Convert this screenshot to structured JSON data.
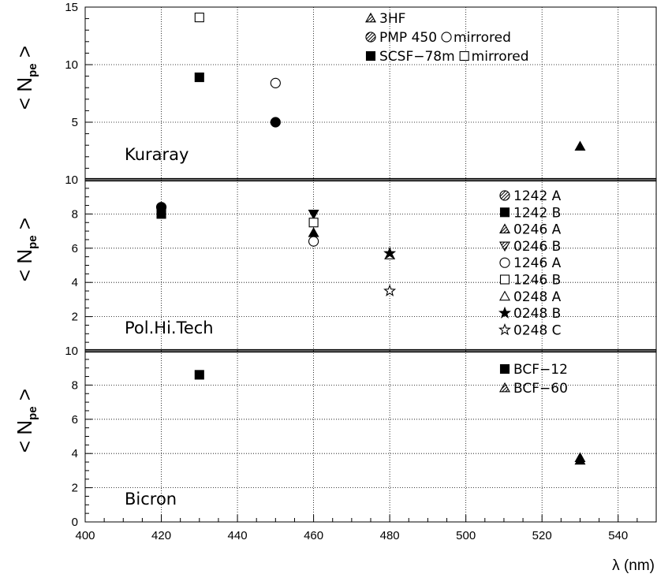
{
  "chart_data": [
    {
      "type": "scatter",
      "panel": "Kuraray",
      "ylabel": "<Npe>",
      "ylim": [
        0,
        15
      ],
      "yticks": [
        5,
        10,
        15
      ],
      "xlim": [
        400,
        550
      ],
      "grid": true,
      "legend_position": "top-center",
      "series": [
        {
          "name": "3HF",
          "marker": "triangle-filled",
          "points": [
            {
              "x": 530,
              "y": 2.9
            }
          ]
        },
        {
          "name": "PMP 450",
          "marker": "circle-filled",
          "points": [
            {
              "x": 450,
              "y": 5.0
            }
          ]
        },
        {
          "name": "PMP 450 mirrored",
          "marker": "circle-open",
          "points": [
            {
              "x": 450,
              "y": 8.4
            }
          ]
        },
        {
          "name": "SCSF-78m",
          "marker": "square-filled",
          "points": [
            {
              "x": 430,
              "y": 8.9
            }
          ]
        },
        {
          "name": "SCSF-78m mirrored",
          "marker": "square-open",
          "points": [
            {
              "x": 430,
              "y": 14.1
            }
          ]
        }
      ],
      "legend": [
        {
          "markers": [
            "triangle-hatched"
          ],
          "text": "3HF"
        },
        {
          "markers": [
            "circle-hatched"
          ],
          "text": "PMP 450",
          "text2": "mirrored",
          "marker2": "circle-open"
        },
        {
          "markers": [
            "square-filled"
          ],
          "text": "SCSF−78m",
          "text2": "mirrored",
          "marker2": "square-open"
        }
      ]
    },
    {
      "type": "scatter",
      "panel": "Pol.Hi.Tech",
      "ylabel": "<Npe>",
      "ylim": [
        0,
        10
      ],
      "yticks": [
        2,
        4,
        6,
        8,
        10
      ],
      "xlim": [
        400,
        550
      ],
      "grid": true,
      "legend_position": "right",
      "series": [
        {
          "name": "1242 A",
          "marker": "circle-filled",
          "points": [
            {
              "x": 420,
              "y": 8.4
            }
          ]
        },
        {
          "name": "1242 B",
          "marker": "square-filled",
          "points": [
            {
              "x": 420,
              "y": 8.0
            }
          ]
        },
        {
          "name": "0246 A",
          "marker": "triangle-filled",
          "points": [
            {
              "x": 460,
              "y": 6.9
            }
          ]
        },
        {
          "name": "0246 B",
          "marker": "triangle-down-filled",
          "points": [
            {
              "x": 460,
              "y": 8.0
            }
          ]
        },
        {
          "name": "1246 A",
          "marker": "circle-open",
          "points": [
            {
              "x": 460,
              "y": 6.4
            }
          ]
        },
        {
          "name": "1246 B",
          "marker": "square-open",
          "points": [
            {
              "x": 460,
              "y": 7.5
            }
          ]
        },
        {
          "name": "0248 A",
          "marker": "triangle-open",
          "points": [
            {
              "x": 480,
              "y": 5.6
            }
          ]
        },
        {
          "name": "0248 B",
          "marker": "star-filled",
          "points": [
            {
              "x": 480,
              "y": 5.7
            }
          ]
        },
        {
          "name": "0248 C",
          "marker": "star-open",
          "points": [
            {
              "x": 480,
              "y": 3.5
            }
          ]
        }
      ],
      "legend": [
        {
          "markers": [
            "circle-hatched"
          ],
          "text": "1242 A"
        },
        {
          "markers": [
            "square-filled"
          ],
          "text": "1242 B"
        },
        {
          "markers": [
            "triangle-hatched"
          ],
          "text": "0246 A"
        },
        {
          "markers": [
            "triangle-down-hatched"
          ],
          "text": "0246 B"
        },
        {
          "markers": [
            "circle-open"
          ],
          "text": "1246 A"
        },
        {
          "markers": [
            "square-open"
          ],
          "text": "1246 B"
        },
        {
          "markers": [
            "triangle-open"
          ],
          "text": "0248 A"
        },
        {
          "markers": [
            "star-filled"
          ],
          "text": "0248 B"
        },
        {
          "markers": [
            "star-open"
          ],
          "text": "0248 C"
        }
      ]
    },
    {
      "type": "scatter",
      "panel": "Bicron",
      "ylabel": "<Npe>",
      "ylim": [
        0,
        10
      ],
      "yticks": [
        0,
        2,
        4,
        6,
        8,
        10
      ],
      "xlim": [
        400,
        550
      ],
      "xticks": [
        400,
        420,
        440,
        460,
        480,
        500,
        520,
        540
      ],
      "xlabel": "λ (nm)",
      "grid": true,
      "legend_position": "top-right",
      "series": [
        {
          "name": "BCF-12",
          "marker": "square-filled",
          "points": [
            {
              "x": 430,
              "y": 8.6
            }
          ]
        },
        {
          "name": "BCF-60",
          "marker": "triangle-filled",
          "points": [
            {
              "x": 530,
              "y": 3.6
            },
            {
              "x": 530,
              "y": 3.75
            }
          ]
        }
      ],
      "legend": [
        {
          "markers": [
            "square-filled"
          ],
          "text": "BCF−12"
        },
        {
          "markers": [
            "triangle-hatched"
          ],
          "text": "BCF−60"
        }
      ]
    }
  ]
}
